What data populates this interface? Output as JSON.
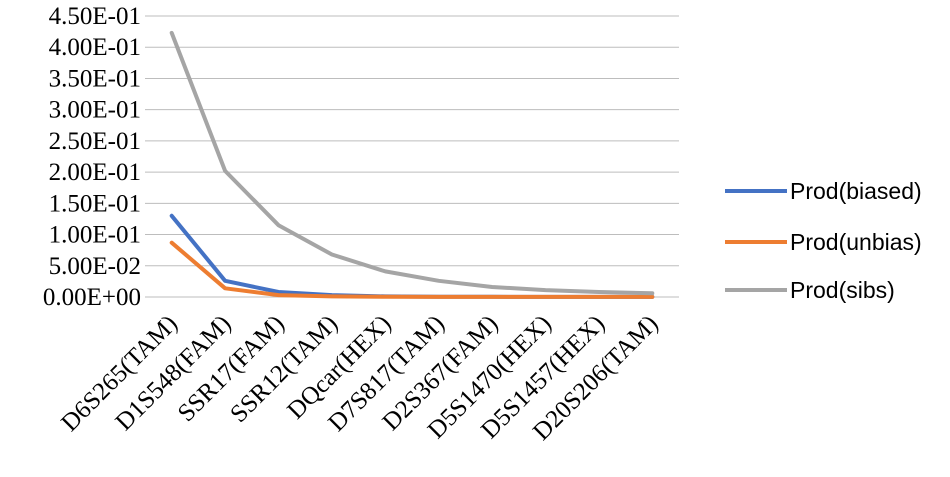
{
  "chart_data": {
    "type": "line",
    "title": "",
    "xlabel": "",
    "ylabel": "",
    "categories": [
      "D6S265(TAM)",
      "D1S548(FAM)",
      "SSR17(FAM)",
      "SSR12(TAM)",
      "DQcar(HEX)",
      "D7S817(TAM)",
      "D2S367(FAM)",
      "D5S1470(HEX)",
      "D5S1457(HEX)",
      "D20S206(TAM)"
    ],
    "ylim": [
      0,
      0.45
    ],
    "yticks": [
      {
        "value": 0.45,
        "label": "4.50E-01"
      },
      {
        "value": 0.4,
        "label": "4.00E-01"
      },
      {
        "value": 0.35,
        "label": "3.50E-01"
      },
      {
        "value": 0.3,
        "label": "3.00E-01"
      },
      {
        "value": 0.25,
        "label": "2.50E-01"
      },
      {
        "value": 0.2,
        "label": "2.00E-01"
      },
      {
        "value": 0.15,
        "label": "1.50E-01"
      },
      {
        "value": 0.1,
        "label": "1.00E-01"
      },
      {
        "value": 0.05,
        "label": "5.00E-02"
      },
      {
        "value": 0.0,
        "label": "0.00E+00"
      }
    ],
    "grid": true,
    "legend_position": "right",
    "series": [
      {
        "name": "Prod(biased)",
        "color": "#4472C4",
        "values": [
          0.13,
          0.026,
          0.008,
          0.003,
          0.001,
          0.0005,
          0.0003,
          0.0002,
          0.0002,
          0.0001
        ]
      },
      {
        "name": "Prod(unbias)",
        "color": "#ED7D31",
        "values": [
          0.087,
          0.014,
          0.003,
          0.001,
          0.0003,
          0.0001,
          0.0001,
          0.0001,
          0.0001,
          0.0001
        ]
      },
      {
        "name": "Prod(sibs)",
        "color": "#A5A5A5",
        "values": [
          0.423,
          0.202,
          0.115,
          0.068,
          0.041,
          0.026,
          0.016,
          0.011,
          0.008,
          0.006
        ]
      }
    ]
  }
}
